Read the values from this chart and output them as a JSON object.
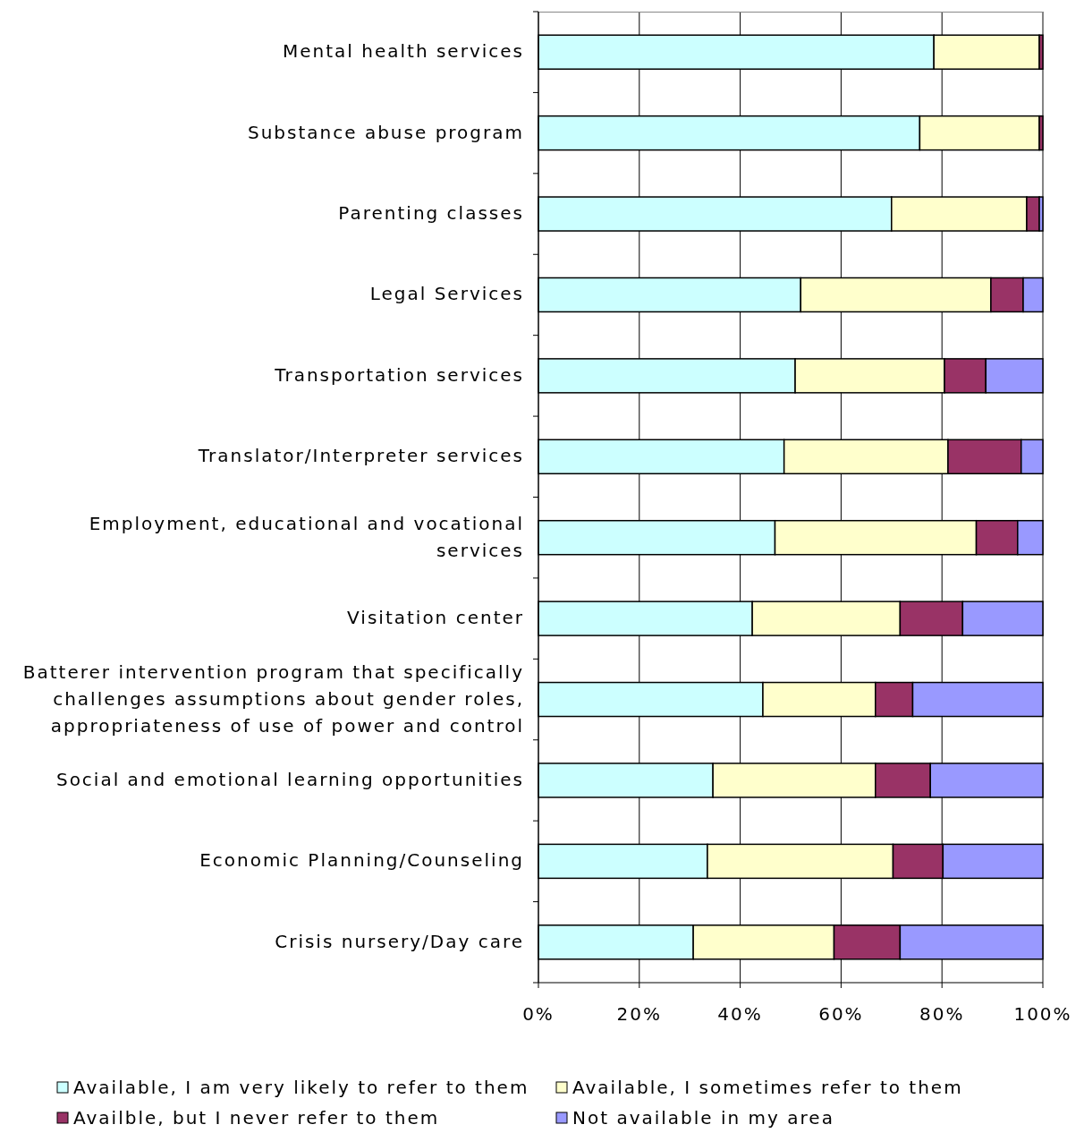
{
  "chart_data": {
    "type": "bar",
    "orientation": "horizontal",
    "stacked": true,
    "categories": [
      "Mental health services",
      "Substance abuse program",
      "Parenting classes",
      "Legal Services",
      "Transportation services",
      "Translator/Interpreter services",
      "Employment, educational and vocational services",
      "Visitation center",
      "Batterer intervention program that specifically challenges assumptions about gender roles, appropriateness of use of power and control",
      "Social and emotional learning opportunities",
      "Economic Planning/Counseling",
      "Crisis nursery/Day care"
    ],
    "series": [
      {
        "name": "Available, I am very likely to refer to them",
        "color": "#ccffff",
        "values": [
          78.4,
          75.6,
          70.0,
          52.0,
          50.9,
          48.7,
          46.9,
          42.4,
          44.5,
          34.6,
          33.5,
          30.7
        ]
      },
      {
        "name": "Available, I sometimes refer to them",
        "color": "#ffffcc",
        "values": [
          20.9,
          23.7,
          26.8,
          37.7,
          29.6,
          32.5,
          39.9,
          29.3,
          22.3,
          32.2,
          36.8,
          27.9
        ]
      },
      {
        "name": "Availble, but I never refer to them",
        "color": "#993366",
        "values": [
          0.7,
          0.7,
          2.5,
          6.4,
          8.2,
          14.5,
          8.2,
          12.4,
          7.4,
          10.9,
          9.9,
          13.1
        ]
      },
      {
        "name": "Not available in my area",
        "color": "#9999ff",
        "values": [
          0,
          0,
          0.7,
          3.9,
          11.3,
          4.3,
          5.0,
          15.9,
          25.8,
          22.3,
          19.8,
          28.3
        ]
      }
    ],
    "xlim": [
      0,
      100
    ],
    "xticks": [
      {
        "value": 0,
        "label": "0%"
      },
      {
        "value": 20,
        "label": "20%"
      },
      {
        "value": 40,
        "label": "40%"
      },
      {
        "value": 60,
        "label": "60%"
      },
      {
        "value": 80,
        "label": "80%"
      },
      {
        "value": 100,
        "label": "100%"
      }
    ],
    "grid": "x",
    "legend": "bottom"
  }
}
